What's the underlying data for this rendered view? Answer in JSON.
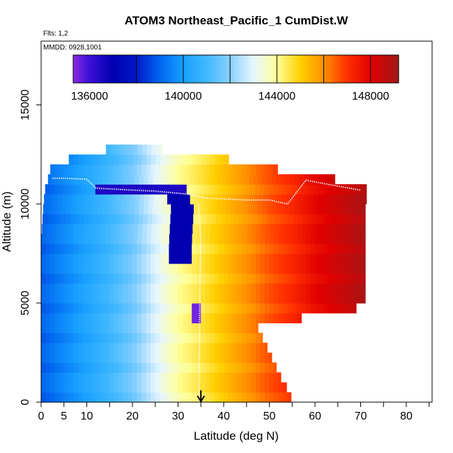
{
  "chart_data": {
    "type": "heatmap",
    "title": "ATOM3 Northeast_Pacific_1 CumDist.W",
    "flights_label": "Flts: 1,2",
    "dates_label": "MMDD: 0928,1001",
    "xlabel": "Latitude (deg N)",
    "ylabel": "Altitude (m)",
    "xlim": [
      0,
      85
    ],
    "ylim": [
      0,
      17500
    ],
    "x_ticks": [
      0,
      5,
      10,
      20,
      30,
      40,
      50,
      60,
      70,
      80
    ],
    "x_minor_ticks": [
      15,
      25,
      35,
      45,
      55,
      65,
      75,
      85
    ],
    "y_ticks": [
      0,
      5000,
      10000,
      15000
    ],
    "colorbar": {
      "min": 135300,
      "max": 149200,
      "tick_values": [
        136000,
        140000,
        144000,
        148000
      ],
      "tick_labels": [
        "136000",
        "140000",
        "144000",
        "148000"
      ],
      "stops": [
        {
          "v": 135300,
          "c": "#8a2be2"
        },
        {
          "v": 136000,
          "c": "#3a10d8"
        },
        {
          "v": 137000,
          "c": "#0000b0"
        },
        {
          "v": 138000,
          "c": "#0018c8"
        },
        {
          "v": 139000,
          "c": "#0066f0"
        },
        {
          "v": 140000,
          "c": "#18a0ff"
        },
        {
          "v": 141000,
          "c": "#40b8ff"
        },
        {
          "v": 142000,
          "c": "#8ad0ff"
        },
        {
          "v": 143000,
          "c": "#e6f6ff"
        },
        {
          "v": 144000,
          "c": "#ffff99"
        },
        {
          "v": 145000,
          "c": "#ffd000"
        },
        {
          "v": 146000,
          "c": "#ff9000"
        },
        {
          "v": 147000,
          "c": "#ff3000"
        },
        {
          "v": 148000,
          "c": "#e00000"
        },
        {
          "v": 149200,
          "c": "#a01818"
        }
      ]
    },
    "value_model": {
      "lat_value_pairs": [
        [
          0,
          139000
        ],
        [
          10,
          140300
        ],
        [
          20,
          141800
        ],
        [
          25,
          143000
        ],
        [
          30,
          144000
        ],
        [
          35,
          144600
        ],
        [
          40,
          145300
        ],
        [
          50,
          146700
        ],
        [
          55,
          147200
        ],
        [
          60,
          147900
        ],
        [
          70,
          148900
        ],
        [
          72,
          149100
        ]
      ]
    },
    "altitude_profile_upper_lat": [
      [
        0,
        55
      ],
      [
        500,
        54.5
      ],
      [
        1000,
        53
      ],
      [
        1500,
        52
      ],
      [
        2000,
        51
      ],
      [
        2500,
        50
      ],
      [
        3000,
        49
      ],
      [
        3500,
        48
      ],
      [
        4000,
        47
      ],
      [
        4500,
        67
      ],
      [
        5000,
        71
      ],
      [
        7000,
        71
      ],
      [
        8000,
        71
      ],
      [
        9000,
        71
      ],
      [
        10000,
        71
      ],
      [
        10500,
        71.5
      ],
      [
        11000,
        71
      ],
      [
        11600,
        55
      ],
      [
        12300,
        40
      ],
      [
        12800,
        25
      ]
    ],
    "altitude_profile_lower_lat": [
      [
        0,
        0
      ],
      [
        8000,
        0
      ],
      [
        10000,
        0.5
      ],
      [
        11000,
        1
      ],
      [
        11500,
        2
      ],
      [
        12000,
        2
      ],
      [
        12800,
        15
      ]
    ],
    "dark_anomalies": [
      {
        "lat_range": [
          28,
          33
        ],
        "alt_range": [
          7000,
          10500
        ],
        "value": 137000
      },
      {
        "lat_range": [
          33,
          35
        ],
        "alt_range": [
          3800,
          5000
        ],
        "value": 135500
      },
      {
        "lat_range": [
          12,
          32
        ],
        "alt_range": [
          10400,
          10800
        ],
        "value": 136500
      }
    ],
    "flight_tracks": [
      {
        "name": "flight-track-1",
        "points": [
          [
            2.5,
            11300
          ],
          [
            5,
            11300
          ],
          [
            10,
            11250
          ],
          [
            12,
            10800
          ],
          [
            20,
            10700
          ],
          [
            25,
            10650
          ],
          [
            32,
            10500
          ],
          [
            36,
            10300
          ],
          [
            45,
            10200
          ],
          [
            50,
            10200
          ],
          [
            54,
            10000
          ],
          [
            58,
            11200
          ],
          [
            65,
            10900
          ],
          [
            70,
            10700
          ]
        ]
      },
      {
        "name": "flight-track-2",
        "points": [
          [
            34.5,
            10000
          ],
          [
            35,
            8000
          ],
          [
            34.8,
            6000
          ],
          [
            34.7,
            4000
          ],
          [
            34.6,
            2000
          ],
          [
            34.5,
            0
          ]
        ]
      }
    ],
    "annotations": [
      {
        "type": "arrow",
        "lat": 35,
        "from_alt": 600,
        "to_alt": 0
      }
    ]
  }
}
